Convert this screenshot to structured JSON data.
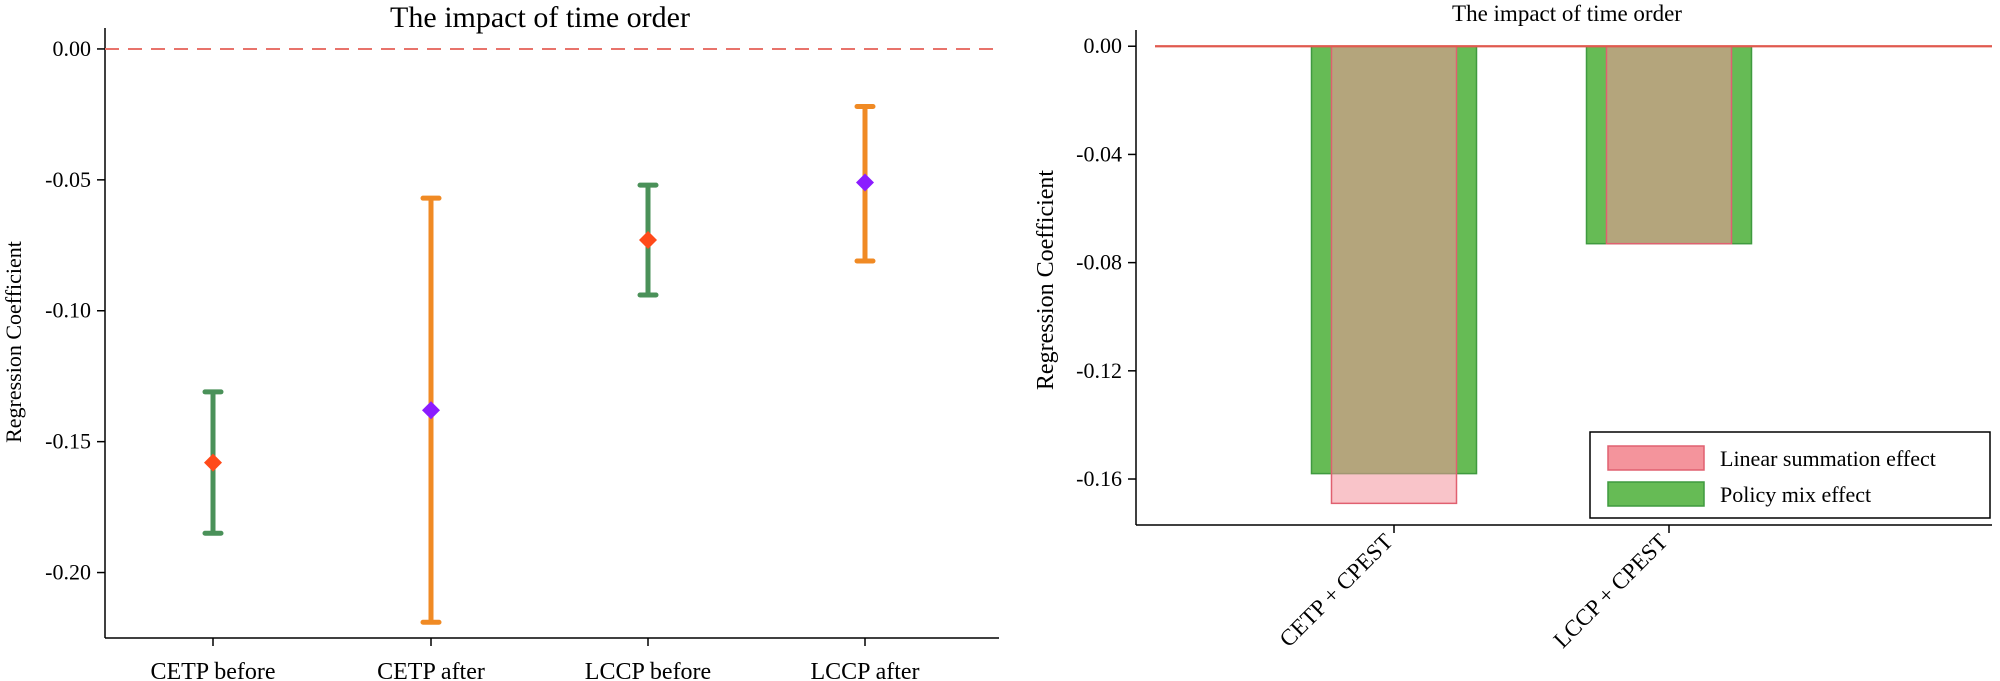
{
  "chart_data": [
    {
      "type": "errorbar",
      "title": "The impact of time order",
      "xlabel": "",
      "ylabel": "Regression Coefficient",
      "ylim": [
        -0.225,
        0.008
      ],
      "yticks": [
        0.0,
        -0.05,
        -0.1,
        -0.15,
        -0.2
      ],
      "ytick_labels": [
        "0.00",
        "-0.05",
        "-0.10",
        "-0.15",
        "-0.20"
      ],
      "reference_line": {
        "y": 0.0,
        "style": "dashed",
        "color": "#e8736b"
      },
      "categories": [
        "CETP before",
        "CETP after",
        "LCCP before",
        "LCCP after"
      ],
      "points": [
        {
          "category": "CETP before",
          "estimate": -0.158,
          "lower": -0.185,
          "upper": -0.131,
          "bar_color": "#4a9159",
          "marker_color": "#ff4a1a"
        },
        {
          "category": "CETP after",
          "estimate": -0.138,
          "lower": -0.219,
          "upper": -0.057,
          "bar_color": "#f08a24",
          "marker_color": "#8b1cff"
        },
        {
          "category": "LCCP before",
          "estimate": -0.073,
          "lower": -0.094,
          "upper": -0.052,
          "bar_color": "#4a9159",
          "marker_color": "#ff4a1a"
        },
        {
          "category": "LCCP after",
          "estimate": -0.051,
          "lower": -0.081,
          "upper": -0.022,
          "bar_color": "#f08a24",
          "marker_color": "#8b1cff"
        }
      ]
    },
    {
      "type": "bar",
      "title": "The impact of time order",
      "xlabel": "",
      "ylabel": "Regression Coefficient",
      "ylim": [
        -0.177,
        0.006
      ],
      "yticks": [
        0.0,
        -0.04,
        -0.08,
        -0.12,
        -0.16
      ],
      "ytick_labels": [
        "0.00",
        "-0.04",
        "-0.08",
        "-0.12",
        "-0.16"
      ],
      "reference_line": {
        "y": 0.0,
        "style": "solid",
        "color": "#e05a4f"
      },
      "categories": [
        "CETP + CPEST",
        "LCCP + CPEST"
      ],
      "series": [
        {
          "name": "Linear summation effect",
          "values": [
            -0.169,
            -0.073
          ],
          "color": "#f4949c",
          "edge": "#e06070"
        },
        {
          "name": "Policy mix effect",
          "values": [
            -0.158,
            -0.073
          ],
          "color": "#66bb55",
          "edge": "#3f9a3f"
        }
      ],
      "legend": {
        "position": "bottom-right"
      }
    }
  ]
}
